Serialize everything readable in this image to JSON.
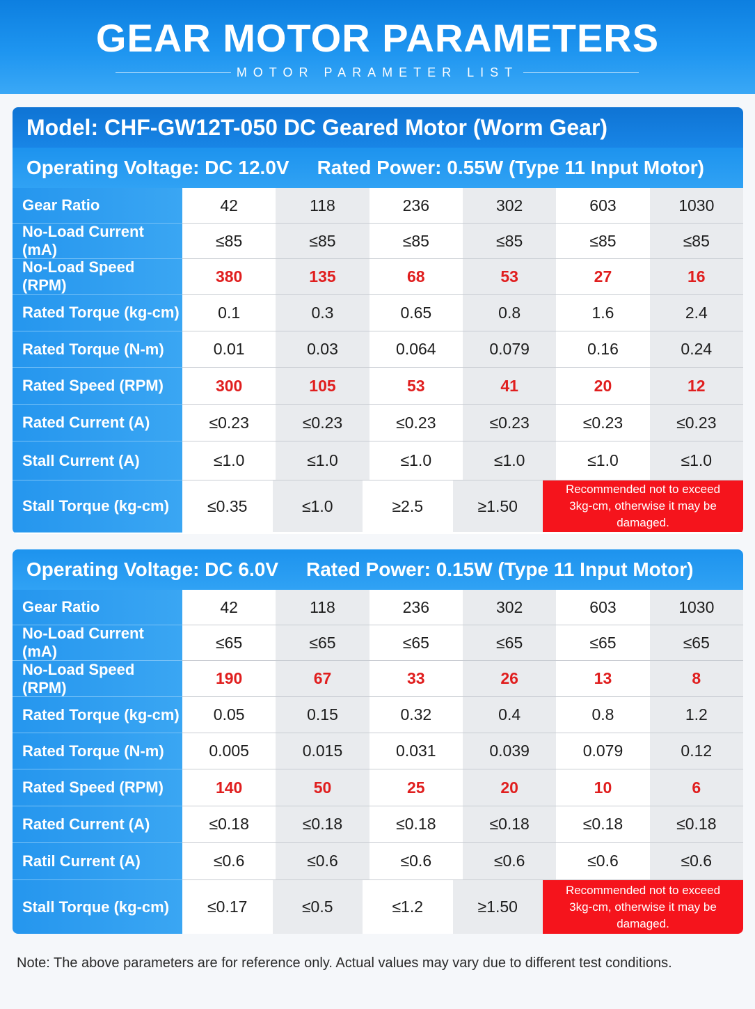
{
  "header": {
    "title": "GEAR MOTOR PARAMETERS",
    "subtitle": "MOTOR PARAMETER LIST"
  },
  "model_title": "Model: CHF-GW12T-050 DC Geared Motor (Worm Gear)",
  "tables": [
    {
      "voltage": "Operating Voltage: DC 12.0V",
      "power": "Rated Power: 0.55W (Type 11 Input Motor)",
      "rows": [
        {
          "label": "Gear Ratio",
          "values": [
            "42",
            "118",
            "236",
            "302",
            "603",
            "1030"
          ]
        },
        {
          "label": "No-Load Current (mA)",
          "values": [
            "≤85",
            "≤85",
            "≤85",
            "≤85",
            "≤85",
            "≤85"
          ]
        },
        {
          "label": "No-Load Speed (RPM)",
          "values": [
            "380",
            "135",
            "68",
            "53",
            "27",
            "16"
          ]
        },
        {
          "label": "Rated Torque (kg-cm)",
          "values": [
            "0.1",
            "0.3",
            "0.65",
            "0.8",
            "1.6",
            "2.4"
          ]
        },
        {
          "label": "Rated Torque (N-m)",
          "values": [
            "0.01",
            "0.03",
            "0.064",
            "0.079",
            "0.16",
            "0.24"
          ]
        },
        {
          "label": "Rated Speed (RPM)",
          "values": [
            "300",
            "105",
            "53",
            "41",
            "20",
            "12"
          ]
        },
        {
          "label": "Rated Current (A)",
          "values": [
            "≤0.23",
            "≤0.23",
            "≤0.23",
            "≤0.23",
            "≤0.23",
            "≤0.23"
          ]
        },
        {
          "label": "Stall Current (A)",
          "values": [
            "≤1.0",
            "≤1.0",
            "≤1.0",
            "≤1.0",
            "≤1.0",
            "≤1.0"
          ]
        },
        {
          "label": "Stall Torque (kg-cm)",
          "values": [
            "≤0.35",
            "≤1.0",
            "≥2.5",
            "≥1.50"
          ]
        }
      ],
      "warning_line1": "Recommended not to exceed",
      "warning_line2": "3kg-cm, otherwise it may be damaged."
    },
    {
      "voltage": "Operating Voltage: DC 6.0V",
      "power": "Rated Power: 0.15W (Type 11 Input Motor)",
      "rows": [
        {
          "label": "Gear Ratio",
          "values": [
            "42",
            "118",
            "236",
            "302",
            "603",
            "1030"
          ]
        },
        {
          "label": "No-Load Current (mA)",
          "values": [
            "≤65",
            "≤65",
            "≤65",
            "≤65",
            "≤65",
            "≤65"
          ]
        },
        {
          "label": "No-Load Speed (RPM)",
          "values": [
            "190",
            "67",
            "33",
            "26",
            "13",
            "8"
          ]
        },
        {
          "label": "Rated Torque (kg-cm)",
          "values": [
            "0.05",
            "0.15",
            "0.32",
            "0.4",
            "0.8",
            "1.2"
          ]
        },
        {
          "label": "Rated Torque (N-m)",
          "values": [
            "0.005",
            "0.015",
            "0.031",
            "0.039",
            "0.079",
            "0.12"
          ]
        },
        {
          "label": "Rated Speed (RPM)",
          "values": [
            "140",
            "50",
            "25",
            "20",
            "10",
            "6"
          ]
        },
        {
          "label": "Rated Current (A)",
          "values": [
            "≤0.18",
            "≤0.18",
            "≤0.18",
            "≤0.18",
            "≤0.18",
            "≤0.18"
          ]
        },
        {
          "label": "Ratil Current (A)",
          "values": [
            "≤0.6",
            "≤0.6",
            "≤0.6",
            "≤0.6",
            "≤0.6",
            "≤0.6"
          ]
        },
        {
          "label": "Stall Torque (kg-cm)",
          "values": [
            "≤0.17",
            "≤0.5",
            "≤1.2",
            "≥1.50"
          ]
        }
      ],
      "warning_line1": "Recommended not to exceed",
      "warning_line2": "3kg-cm, otherwise it may be damaged."
    }
  ],
  "note": "Note: The above parameters are for reference only. Actual values may vary due to different test conditions."
}
